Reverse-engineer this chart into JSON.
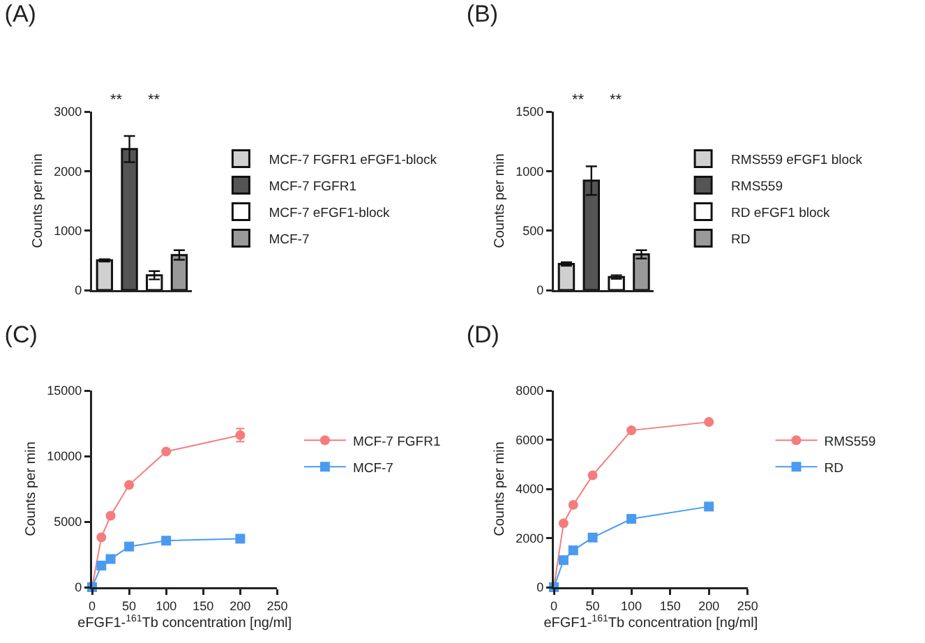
{
  "chart_data": [
    {
      "type": "bar",
      "title": "(A)",
      "ylabel": "Counts per min",
      "categories": [
        null,
        null,
        null,
        null
      ],
      "ylim": [
        0,
        3000
      ],
      "yticks": [
        0,
        1000,
        2000,
        3000
      ],
      "tick_labels": "y",
      "legend": "right",
      "annotations": [
        "**",
        "**"
      ],
      "series": [
        {
          "name": "MCF-7 FGFR1 eFGF1-block",
          "color": "#d0d0d0",
          "values": [
            500,
            null,
            null,
            null
          ],
          "errors": [
            20,
            null,
            null,
            null
          ]
        },
        {
          "name": "MCF-7 FGFR1",
          "color": "#555555",
          "values": [
            null,
            2370,
            null,
            null
          ],
          "errors": [
            null,
            220,
            null,
            null
          ]
        },
        {
          "name": "MCF-7 eFGF1-block",
          "color": "#ffffff",
          "values": [
            null,
            null,
            250,
            null
          ],
          "errors": [
            null,
            null,
            70,
            null
          ]
        },
        {
          "name": "MCF-7",
          "color": "#999999",
          "values": [
            null,
            null,
            null,
            590
          ],
          "errors": [
            null,
            null,
            null,
            80
          ]
        }
      ]
    },
    {
      "type": "bar",
      "title": "(B)",
      "ylabel": "Counts per min",
      "categories": [
        null,
        null,
        null,
        null
      ],
      "ylim": [
        0,
        1500
      ],
      "yticks": [
        0,
        500,
        1000,
        1500
      ],
      "tick_labels": "y",
      "legend": "right",
      "annotations": [
        "**",
        "**"
      ],
      "series": [
        {
          "name": "RMS559 eFGF1 block",
          "color": "#d0d0d0",
          "values": [
            220,
            null,
            null,
            null
          ],
          "errors": [
            15,
            null,
            null,
            null
          ]
        },
        {
          "name": "RMS559",
          "color": "#555555",
          "values": [
            null,
            920,
            null,
            null
          ],
          "errors": [
            null,
            120,
            null,
            null
          ]
        },
        {
          "name": "RD eFGF1 block",
          "color": "#ffffff",
          "values": [
            null,
            null,
            110,
            null
          ],
          "errors": [
            null,
            null,
            15,
            null
          ]
        },
        {
          "name": "RD",
          "color": "#999999",
          "values": [
            null,
            null,
            null,
            300
          ],
          "errors": [
            null,
            null,
            null,
            35
          ]
        }
      ]
    },
    {
      "type": "line",
      "title": "(C)",
      "ylabel": "Counts per min",
      "xlabel": "eFGF1-$^{161}$Tb concentration [ng/ml]",
      "x": [
        0,
        12.5,
        25,
        50,
        100,
        200
      ],
      "xlim": [
        0,
        250
      ],
      "xticks": [
        0,
        50,
        100,
        150,
        200,
        250
      ],
      "ylim": [
        0,
        15000
      ],
      "yticks": [
        0,
        5000,
        10000,
        15000
      ],
      "legend": "right",
      "series": [
        {
          "name": "MCF-7 FGFR1",
          "color": "#f47c7c",
          "marker": "circle",
          "values": [
            0,
            3800,
            5450,
            7800,
            10350,
            11600
          ],
          "errors": [
            null,
            null,
            null,
            null,
            null,
            500
          ]
        },
        {
          "name": "MCF-7",
          "color": "#4a9bf0",
          "marker": "square",
          "values": [
            0,
            1650,
            2150,
            3100,
            3550,
            3700
          ]
        }
      ]
    },
    {
      "type": "line",
      "title": "(D)",
      "ylabel": "Counts per min",
      "xlabel": "eFGF1-$^{161}$Tb concentration [ng/ml]",
      "x": [
        0,
        12.5,
        25,
        50,
        100,
        200
      ],
      "xlim": [
        0,
        250
      ],
      "xticks": [
        0,
        50,
        100,
        150,
        200,
        250
      ],
      "ylim": [
        0,
        8000
      ],
      "yticks": [
        0,
        2000,
        4000,
        6000,
        8000
      ],
      "legend": "right",
      "series": [
        {
          "name": "RMS559",
          "color": "#f47c7c",
          "marker": "circle",
          "values": [
            0,
            2600,
            3350,
            4550,
            6380,
            6720
          ]
        },
        {
          "name": "RD",
          "color": "#4a9bf0",
          "marker": "square",
          "values": [
            0,
            1100,
            1500,
            2020,
            2780,
            3280
          ]
        }
      ]
    }
  ]
}
